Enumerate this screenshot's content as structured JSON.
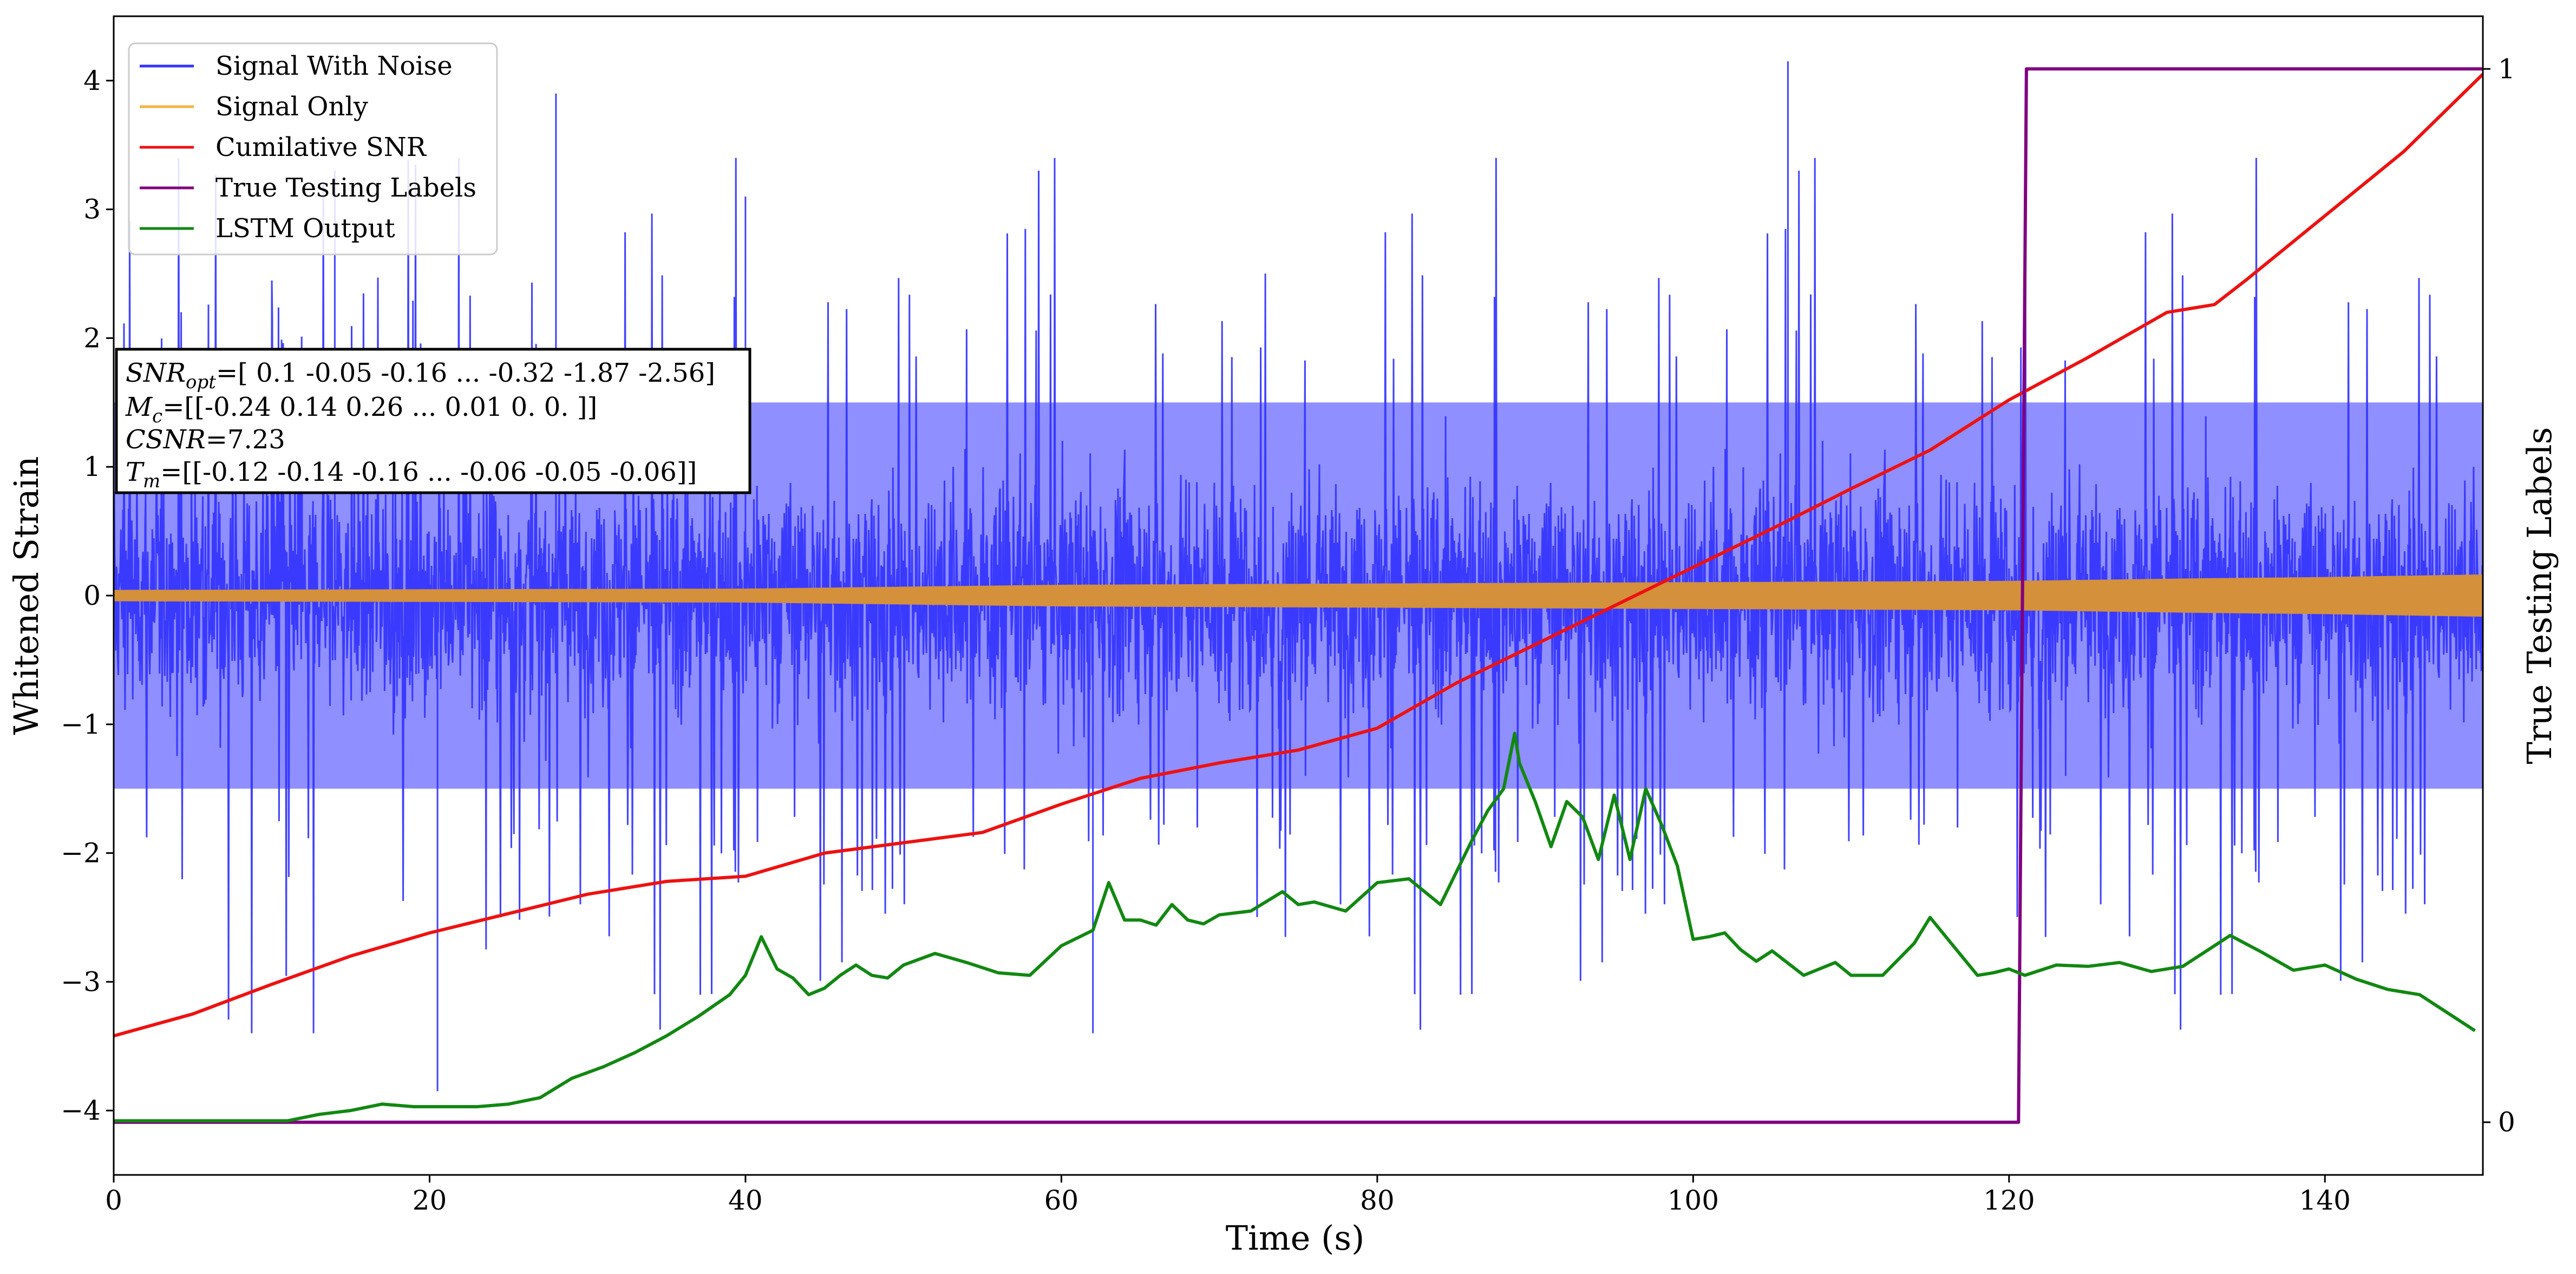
{
  "chart_data": {
    "type": "line",
    "xlabel": "Time (s)",
    "ylabel": "Whitened Strain",
    "y2label": "True Testing Labels",
    "xlim": [
      0,
      150
    ],
    "ylim": [
      -4.5,
      4.5
    ],
    "y2lim": [
      -0.05,
      1.05
    ],
    "xticks": [
      0,
      20,
      40,
      60,
      80,
      100,
      120,
      140
    ],
    "yticks": [
      -4,
      -3,
      -2,
      -1,
      0,
      1,
      2,
      3,
      4
    ],
    "y2ticks": [
      0,
      1
    ],
    "grid": false,
    "legend": {
      "position": "top-left",
      "entries": [
        {
          "label": "Signal With Noise",
          "color": "#3333ff"
        },
        {
          "label": "Signal Only",
          "color": "#f5b342"
        },
        {
          "label": "Cumilative SNR",
          "color": "#ee1111"
        },
        {
          "label": "True Testing Labels",
          "color": "#800080"
        },
        {
          "label": "LSTM Output",
          "color": "#118811"
        }
      ]
    },
    "annotation": {
      "line1_sym": "SNR",
      "line1_sub": "opt",
      "line1_val": "=[ 0.1  -0.05 -0.16 ... -0.32 -1.87 -2.56]",
      "line2_sym": "M",
      "line2_sub": "c",
      "line2_val": "=[[-0.24  0.14  0.26 ...  0.01  0.    0.  ]]",
      "line3_sym": "CSNR",
      "line3_val": "=7.23",
      "line4_sym": "T",
      "line4_sub": "m",
      "line4_val": "=[[-0.12 -0.14 -0.16 ... -0.06 -0.05 -0.06]]"
    },
    "series": [
      {
        "name": "Signal With Noise",
        "color": "#3333ff",
        "envelope_core": [
          -1.5,
          1.5
        ],
        "typical_peak": [
          -2.3,
          2.6
        ],
        "extremes": [
          [
            20.5,
            -3.85
          ],
          [
            28,
            3.9
          ],
          [
            106,
            4.15
          ],
          [
            62,
            -3.4
          ],
          [
            40,
            3.1
          ],
          [
            14,
            3.3
          ]
        ]
      },
      {
        "name": "Signal Only",
        "color": "#d4903a",
        "amplitude": {
          "x": [
            0,
            40,
            60,
            80,
            100,
            120,
            132,
            140,
            150
          ],
          "y": [
            0.04,
            0.05,
            0.08,
            0.09,
            0.1,
            0.11,
            0.13,
            0.14,
            0.16
          ]
        }
      },
      {
        "name": "Cumilative SNR",
        "color": "#ee1111",
        "x": [
          0,
          5,
          10,
          15,
          20,
          25,
          30,
          35,
          40,
          45,
          50,
          55,
          60,
          65,
          70,
          75,
          80,
          85,
          90,
          95,
          100,
          105,
          110,
          115,
          120,
          125,
          130,
          133,
          135,
          140,
          145,
          150
        ],
        "y": [
          -3.42,
          -3.25,
          -3.02,
          -2.8,
          -2.62,
          -2.47,
          -2.32,
          -2.22,
          -2.18,
          -2.0,
          -1.92,
          -1.84,
          -1.62,
          -1.42,
          -1.3,
          -1.2,
          -1.03,
          -0.68,
          -0.38,
          -0.08,
          0.22,
          0.52,
          0.83,
          1.13,
          1.52,
          1.85,
          2.2,
          2.26,
          2.45,
          2.95,
          3.45,
          4.05
        ]
      },
      {
        "name": "True Testing Labels",
        "color": "#800080",
        "axis": "right",
        "x": [
          0,
          120.6,
          121.1,
          150
        ],
        "y": [
          0,
          0,
          1,
          1
        ]
      },
      {
        "name": "LSTM Output",
        "color": "#118811",
        "x": [
          0,
          11,
          13,
          15,
          17,
          19,
          21,
          23,
          25,
          27,
          29,
          31,
          33,
          35,
          37,
          39,
          40,
          41,
          42,
          43,
          44,
          45,
          46,
          47,
          48,
          49,
          50,
          52,
          54,
          56,
          58,
          60,
          62,
          63,
          64,
          65,
          66,
          67,
          68,
          69,
          70,
          72,
          74,
          75,
          76,
          78,
          80,
          82,
          84,
          85,
          86,
          87,
          88,
          88.7,
          89,
          90,
          91,
          92,
          93,
          94,
          95,
          96,
          97,
          98,
          99,
          100,
          101,
          102,
          103,
          104,
          105,
          107,
          109,
          110,
          112,
          114,
          115,
          116,
          117,
          118,
          119,
          120,
          121,
          123,
          125,
          127,
          129,
          131,
          133,
          134,
          136,
          138,
          140,
          142,
          144,
          146,
          148,
          149.5
        ],
        "y": [
          -4.08,
          -4.08,
          -4.03,
          -4.0,
          -3.95,
          -3.97,
          -3.97,
          -3.97,
          -3.95,
          -3.9,
          -3.75,
          -3.66,
          -3.55,
          -3.42,
          -3.27,
          -3.1,
          -2.95,
          -2.65,
          -2.9,
          -2.97,
          -3.1,
          -3.05,
          -2.95,
          -2.87,
          -2.95,
          -2.97,
          -2.87,
          -2.78,
          -2.85,
          -2.93,
          -2.95,
          -2.72,
          -2.6,
          -2.23,
          -2.52,
          -2.52,
          -2.56,
          -2.4,
          -2.52,
          -2.55,
          -2.48,
          -2.45,
          -2.3,
          -2.4,
          -2.38,
          -2.45,
          -2.23,
          -2.2,
          -2.4,
          -2.15,
          -1.9,
          -1.67,
          -1.5,
          -1.07,
          -1.3,
          -1.6,
          -1.95,
          -1.6,
          -1.72,
          -2.05,
          -1.55,
          -2.05,
          -1.5,
          -1.78,
          -2.1,
          -2.67,
          -2.65,
          -2.62,
          -2.75,
          -2.84,
          -2.76,
          -2.95,
          -2.85,
          -2.95,
          -2.95,
          -2.7,
          -2.5,
          -2.65,
          -2.8,
          -2.95,
          -2.93,
          -2.9,
          -2.95,
          -2.87,
          -2.88,
          -2.85,
          -2.92,
          -2.88,
          -2.72,
          -2.64,
          -2.77,
          -2.91,
          -2.87,
          -2.98,
          -3.06,
          -3.1,
          -3.26,
          -3.38
        ]
      }
    ]
  }
}
